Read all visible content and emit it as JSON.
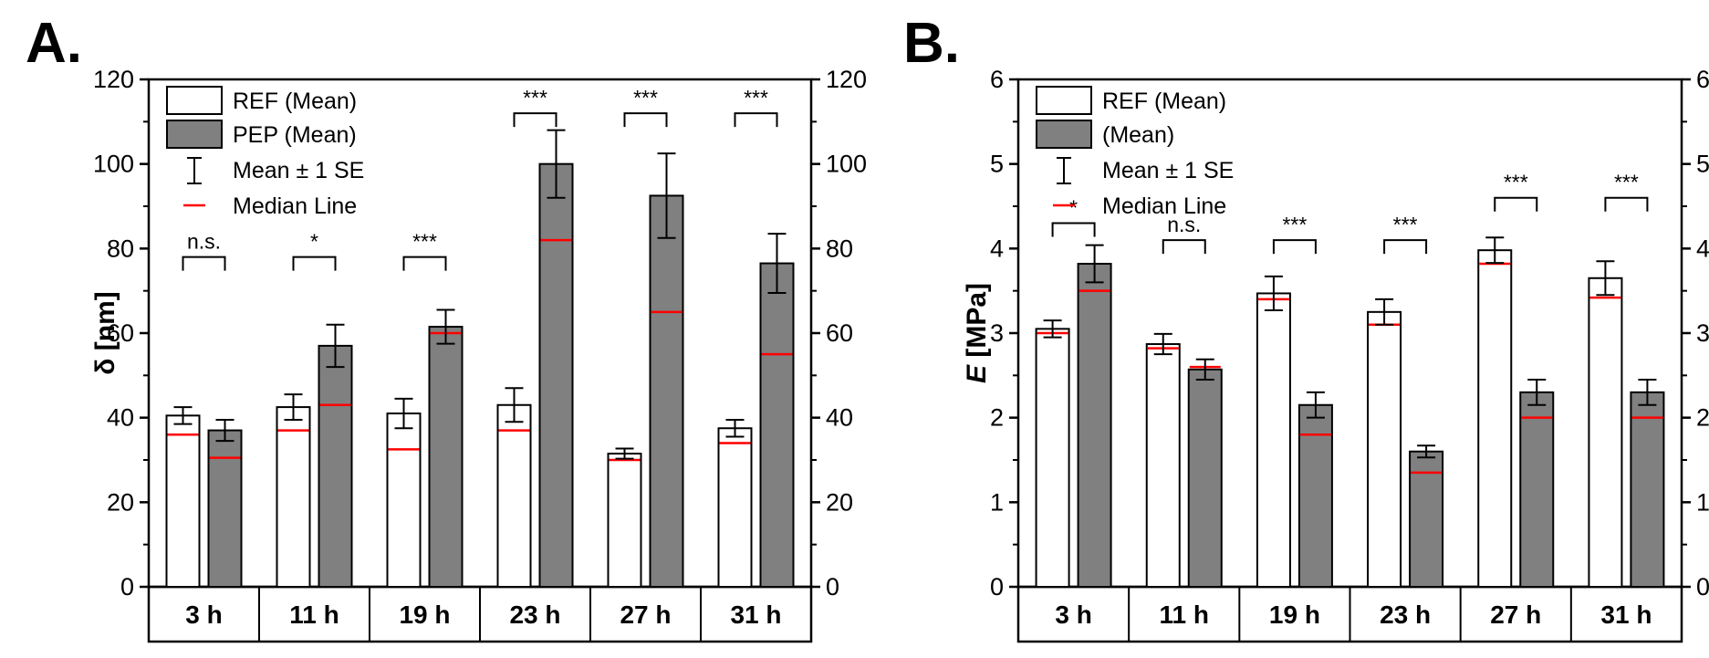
{
  "chart_data": [
    {
      "panel_label": "A.",
      "type": "bar",
      "ylabel": "δ [nm]",
      "ylim": [
        0,
        120
      ],
      "yticks": [
        0,
        20,
        40,
        60,
        80,
        100,
        120
      ],
      "ytick_labels": [
        "0",
        "20",
        "40",
        "60",
        "80",
        "100",
        "120"
      ],
      "categories": [
        "3 h",
        "11 h",
        "19 h",
        "23 h",
        "27 h",
        "31 h"
      ],
      "series": [
        {
          "name": "REF (Mean)",
          "fill": "#ffffff",
          "values": [
            40.5,
            42.5,
            41,
            43,
            31.5,
            37.5
          ],
          "se": [
            2,
            3,
            3.5,
            4,
            1.2,
            2
          ],
          "median": [
            36,
            37,
            32.5,
            37,
            30,
            34
          ]
        },
        {
          "name": "PEP (Mean)",
          "fill": "#808080",
          "values": [
            37,
            57,
            61.5,
            100,
            92.5,
            76.5
          ],
          "se": [
            2.5,
            5,
            4,
            8,
            10,
            7
          ],
          "median": [
            30.5,
            43,
            60,
            82,
            65,
            55
          ]
        }
      ],
      "legend": {
        "position": "top-left",
        "items": [
          "REF (Mean)",
          "PEP (Mean)",
          "Mean ± 1 SE",
          "Median Line"
        ]
      },
      "significance": [
        {
          "label": "n.s.",
          "y": 78
        },
        {
          "label": "*",
          "y": 78
        },
        {
          "label": "***",
          "y": 78
        },
        {
          "label": "***",
          "y": 112
        },
        {
          "label": "***",
          "y": 112
        },
        {
          "label": "***",
          "y": 112
        }
      ]
    },
    {
      "panel_label": "B.",
      "type": "bar",
      "ylabel": "E [MPa]",
      "ylabel_italic": "E",
      "ylabel_rest": " [MPa]",
      "ylim": [
        0,
        6
      ],
      "yticks": [
        0,
        1,
        2,
        3,
        4,
        5,
        6
      ],
      "ytick_labels": [
        "0",
        "1",
        "2",
        "3",
        "4",
        "5",
        "6"
      ],
      "categories": [
        "3 h",
        "11 h",
        "19 h",
        "23 h",
        "27 h",
        "31 h"
      ],
      "series": [
        {
          "name": "REF (Mean)",
          "fill": "#ffffff",
          "values": [
            3.05,
            2.87,
            3.47,
            3.25,
            3.98,
            3.65
          ],
          "se": [
            0.1,
            0.12,
            0.2,
            0.15,
            0.15,
            0.2
          ],
          "median": [
            3.0,
            2.82,
            3.4,
            3.1,
            3.82,
            3.42
          ]
        },
        {
          "name": " (Mean)",
          "fill": "#808080",
          "values": [
            3.82,
            2.57,
            2.15,
            1.6,
            2.3,
            2.3
          ],
          "se": [
            0.22,
            0.12,
            0.15,
            0.07,
            0.15,
            0.15
          ],
          "median": [
            3.5,
            2.6,
            1.8,
            1.35,
            2.0,
            2.0
          ]
        }
      ],
      "legend": {
        "position": "top-left",
        "items": [
          "REF (Mean)",
          " (Mean)",
          "Mean ± 1 SE",
          "Median Line"
        ]
      },
      "significance": [
        {
          "label": "*",
          "y": 4.3
        },
        {
          "label": "n.s.",
          "y": 4.1
        },
        {
          "label": "***",
          "y": 4.1
        },
        {
          "label": "***",
          "y": 4.1
        },
        {
          "label": "***",
          "y": 4.6
        },
        {
          "label": "***",
          "y": 4.6
        }
      ]
    }
  ]
}
